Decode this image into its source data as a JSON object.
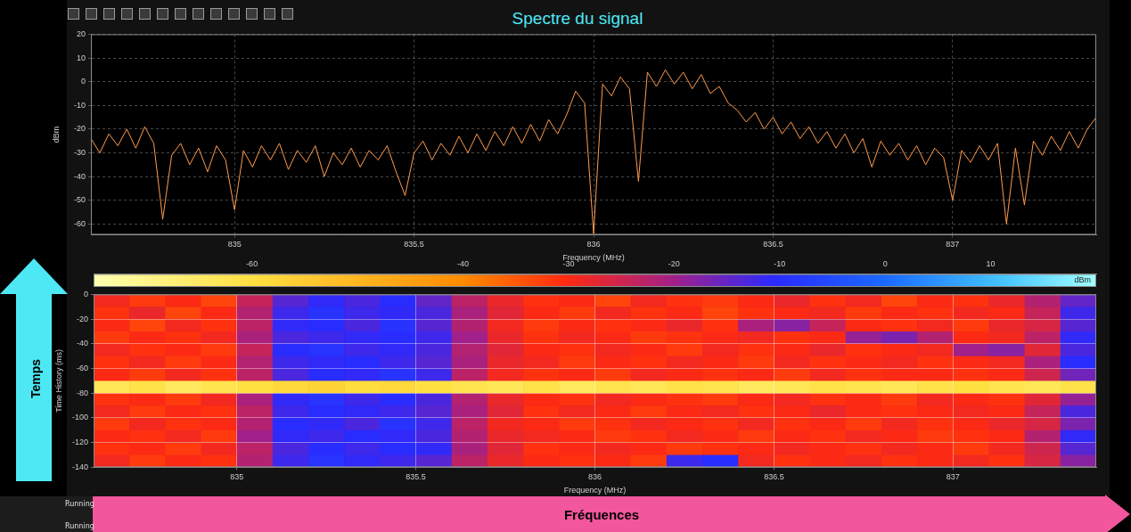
{
  "annotations": {
    "time_arrow": "Temps",
    "frequency_arrow": "Fréquences",
    "status": [
      "Running",
      "Running"
    ]
  },
  "chart_data": [
    {
      "type": "line",
      "title": "Spectre du signal",
      "x_label": "Frequency (MHz)",
      "y_label": "dBm",
      "color": "#ff9a4d",
      "grid": true,
      "xlim": [
        834.6,
        837.4
      ],
      "xticks": [
        835,
        835.5,
        836,
        836.5,
        837
      ],
      "ylim": [
        -64.5,
        20
      ],
      "yticks": [
        -60,
        -50,
        -40,
        -30,
        -20,
        -10,
        0,
        10,
        20
      ],
      "x": [
        834.6,
        834.625,
        834.65,
        834.675,
        834.7,
        834.725,
        834.75,
        834.775,
        834.8,
        834.825,
        834.85,
        834.875,
        834.9,
        834.925,
        834.95,
        834.975,
        835,
        835.025,
        835.05,
        835.075,
        835.1,
        835.125,
        835.15,
        835.175,
        835.2,
        835.225,
        835.25,
        835.275,
        835.3,
        835.325,
        835.35,
        835.375,
        835.4,
        835.425,
        835.45,
        835.475,
        835.5,
        835.525,
        835.55,
        835.575,
        835.6,
        835.625,
        835.65,
        835.675,
        835.7,
        835.725,
        835.75,
        835.775,
        835.8,
        835.825,
        835.85,
        835.875,
        835.9,
        835.925,
        835.95,
        835.975,
        836,
        836.025,
        836.05,
        836.075,
        836.1,
        836.125,
        836.15,
        836.175,
        836.2,
        836.225,
        836.25,
        836.275,
        836.3,
        836.325,
        836.35,
        836.375,
        836.4,
        836.425,
        836.45,
        836.475,
        836.5,
        836.525,
        836.55,
        836.575,
        836.6,
        836.625,
        836.65,
        836.675,
        836.7,
        836.725,
        836.75,
        836.775,
        836.8,
        836.825,
        836.85,
        836.875,
        836.9,
        836.925,
        836.95,
        836.975,
        837,
        837.025,
        837.05,
        837.075,
        837.1,
        837.125,
        837.15,
        837.175,
        837.2,
        837.225,
        837.25,
        837.275,
        837.3,
        837.325,
        837.35,
        837.375,
        837.4
      ],
      "values": [
        -24,
        -30,
        -22,
        -27,
        -20,
        -28,
        -19,
        -26,
        -58,
        -31,
        -26,
        -35,
        -28,
        -38,
        -27,
        -33,
        -54,
        -29,
        -36,
        -27,
        -33,
        -26,
        -37,
        -29,
        -34,
        -27,
        -40,
        -30,
        -35,
        -28,
        -36,
        -29,
        -33,
        -27,
        -38,
        -48,
        -30,
        -25,
        -33,
        -26,
        -31,
        -23,
        -30,
        -22,
        -29,
        -21,
        -27,
        -19,
        -26,
        -18,
        -25,
        -16,
        -22,
        -14,
        -4,
        -9,
        -64,
        -1,
        -6,
        2,
        -3,
        -42,
        4,
        -2,
        5,
        -1,
        4,
        -3,
        3,
        -5,
        -2,
        -9,
        -12,
        -17,
        -13,
        -20,
        -15,
        -22,
        -17,
        -24,
        -19,
        -26,
        -21,
        -28,
        -22,
        -30,
        -24,
        -36,
        -25,
        -31,
        -26,
        -33,
        -27,
        -35,
        -28,
        -32,
        -50,
        -29,
        -34,
        -27,
        -33,
        -26,
        -60,
        -28,
        -52,
        -25,
        -31,
        -23,
        -29,
        -21,
        -28,
        -20,
        -15
      ]
    },
    {
      "type": "heatmap",
      "x_label": "Frequency (MHz)",
      "y_label": "Time History (ms)",
      "grid": true,
      "xlim": [
        834.6,
        837.4
      ],
      "xticks": [
        835,
        835.5,
        836,
        836.5,
        837
      ],
      "ylim": [
        -140,
        0
      ],
      "yticks": [
        0,
        -20,
        -40,
        -60,
        -80,
        -100,
        -120,
        -140
      ],
      "x": [
        834.65,
        834.75,
        834.85,
        834.95,
        835.05,
        835.15,
        835.25,
        835.35,
        835.45,
        835.55,
        835.65,
        835.75,
        835.85,
        835.95,
        836.05,
        836.15,
        836.25,
        836.35,
        836.45,
        836.55,
        836.65,
        836.75,
        836.85,
        836.95,
        837.05,
        837.15,
        837.25,
        837.35
      ],
      "y": [
        -5,
        -15,
        -25,
        -35,
        -45,
        -55,
        -65,
        -75,
        -85,
        -95,
        -105,
        -115,
        -125,
        -135
      ],
      "cells": [
        [
          -29,
          -32,
          -30,
          -33,
          -24,
          -14,
          -11,
          -13,
          -10,
          -15,
          -23,
          -28,
          -31,
          -30,
          -33,
          -29,
          -31,
          -32,
          -30,
          -28,
          -31,
          -29,
          -33,
          -30,
          -31,
          -28,
          -22,
          -15
        ],
        [
          -31,
          -28,
          -33,
          -30,
          -22,
          -12,
          -9,
          -12,
          -11,
          -13,
          -21,
          -27,
          -30,
          -32,
          -29,
          -31,
          -30,
          -33,
          -31,
          -30,
          -29,
          -32,
          -30,
          -31,
          -29,
          -30,
          -24,
          -12
        ],
        [
          -30,
          -33,
          -29,
          -31,
          -23,
          -11,
          -10,
          -13,
          -9,
          -14,
          -22,
          -29,
          -32,
          -30,
          -31,
          -30,
          -28,
          -31,
          -21,
          -18,
          -24,
          -30,
          -31,
          -29,
          -32,
          -28,
          -26,
          -14
        ],
        [
          -32,
          -30,
          -31,
          -29,
          -21,
          -13,
          -12,
          -11,
          -10,
          -12,
          -20,
          -28,
          -31,
          -29,
          -30,
          -32,
          -31,
          -30,
          -29,
          -31,
          -30,
          -19,
          -17,
          -22,
          -30,
          -29,
          -23,
          -11
        ],
        [
          -29,
          -31,
          -30,
          -32,
          -24,
          -10,
          -9,
          -12,
          -11,
          -13,
          -22,
          -27,
          -30,
          -31,
          -29,
          -30,
          -32,
          -29,
          -31,
          -30,
          -28,
          -31,
          -30,
          -29,
          -20,
          -18,
          -27,
          -13
        ],
        [
          -31,
          -29,
          -32,
          -30,
          -22,
          -12,
          -11,
          -10,
          -12,
          -14,
          -21,
          -28,
          -29,
          -32,
          -30,
          -31,
          -29,
          -30,
          -32,
          -29,
          -31,
          -30,
          -29,
          -31,
          -30,
          -29,
          -21,
          -10
        ],
        [
          -30,
          -32,
          -29,
          -31,
          -23,
          -13,
          -10,
          -11,
          -9,
          -12,
          -23,
          -29,
          -31,
          -30,
          -32,
          -29,
          -30,
          -31,
          -30,
          -32,
          -29,
          -31,
          -30,
          -30,
          -31,
          -30,
          -25,
          -16
        ],
        [
          -63,
          -61,
          -64,
          -62,
          -60,
          -58,
          -57,
          -59,
          -58,
          -60,
          -62,
          -63,
          -61,
          -64,
          -62,
          -63,
          -61,
          -62,
          -64,
          -63,
          -61,
          -62,
          -63,
          -61,
          -60,
          -62,
          -63,
          -61
        ],
        [
          -31,
          -30,
          -32,
          -29,
          -21,
          -11,
          -9,
          -12,
          -10,
          -13,
          -22,
          -28,
          -30,
          -31,
          -29,
          -30,
          -31,
          -32,
          -30,
          -29,
          -31,
          -30,
          -32,
          -29,
          -30,
          -31,
          -27,
          -19
        ],
        [
          -29,
          -32,
          -30,
          -31,
          -23,
          -12,
          -10,
          -11,
          -12,
          -14,
          -21,
          -27,
          -31,
          -29,
          -30,
          -32,
          -30,
          -29,
          -31,
          -30,
          -28,
          -30,
          -31,
          -30,
          -29,
          -30,
          -24,
          -13
        ],
        [
          -32,
          -29,
          -31,
          -30,
          -22,
          -10,
          -11,
          -13,
          -9,
          -12,
          -23,
          -29,
          -30,
          -32,
          -31,
          -29,
          -30,
          -31,
          -29,
          -31,
          -30,
          -32,
          -29,
          -31,
          -30,
          -28,
          -26,
          -17
        ],
        [
          -30,
          -31,
          -29,
          -32,
          -20,
          -11,
          -12,
          -10,
          -11,
          -13,
          -22,
          -28,
          -29,
          -30,
          -32,
          -31,
          -29,
          -30,
          -32,
          -30,
          -31,
          -29,
          -30,
          -32,
          -31,
          -30,
          -22,
          -11
        ],
        [
          -31,
          -30,
          -32,
          -29,
          -23,
          -13,
          -10,
          -12,
          -10,
          -11,
          -21,
          -27,
          -31,
          -30,
          -29,
          -30,
          -32,
          -31,
          -30,
          -29,
          -30,
          -31,
          -29,
          -30,
          -32,
          -29,
          -25,
          -14
        ],
        [
          -29,
          -32,
          -30,
          -31,
          -22,
          -12,
          -9,
          -11,
          -12,
          -14,
          -23,
          -28,
          -30,
          -31,
          -30,
          -32,
          -12,
          -10,
          -29,
          -31,
          -30,
          -29,
          -31,
          -30,
          -29,
          -31,
          -26,
          -18
        ]
      ],
      "colorbar": {
        "range": [
          -75,
          20
        ],
        "ticks": [
          -60,
          -40,
          -30,
          -20,
          -10,
          0,
          10
        ],
        "label": "dBm"
      }
    }
  ]
}
